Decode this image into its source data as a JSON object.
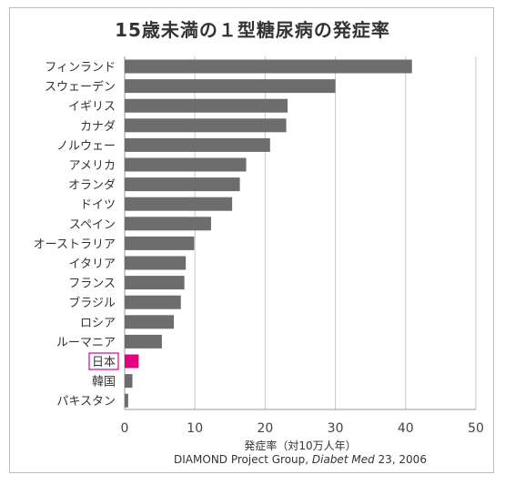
{
  "chart_data": {
    "type": "bar",
    "orientation": "horizontal",
    "title": "15歳未満の１型糖尿病の発症率",
    "xlabel": "発症率（対10万人年）",
    "source": {
      "prefix": "DIAMOND Project Group, ",
      "journal": "Diabet Med",
      "suffix": " 23, 2006"
    },
    "categories": [
      "フィンランド",
      "スウェーデン",
      "イギリス",
      "カナダ",
      "ノルウェー",
      "アメリカ",
      "オランダ",
      "ドイツ",
      "スペイン",
      "オーストラリア",
      "イタリア",
      "フランス",
      "ブラジル",
      "ロシア",
      "ルーマニア",
      "日本",
      "韓国",
      "パキスタン"
    ],
    "values": [
      40.9,
      30.0,
      23.2,
      23.0,
      20.7,
      17.3,
      16.4,
      15.3,
      12.3,
      9.9,
      8.7,
      8.5,
      8.0,
      7.0,
      5.3,
      2.0,
      1.1,
      0.5
    ],
    "highlight": "日本",
    "xlim": [
      0,
      50
    ],
    "xticks": [
      0,
      10,
      20,
      30,
      40,
      50
    ],
    "grid": true,
    "colors": {
      "bar": "#6d6d6d",
      "highlight": "#e4007f",
      "grid": "#c8c8c8"
    }
  }
}
